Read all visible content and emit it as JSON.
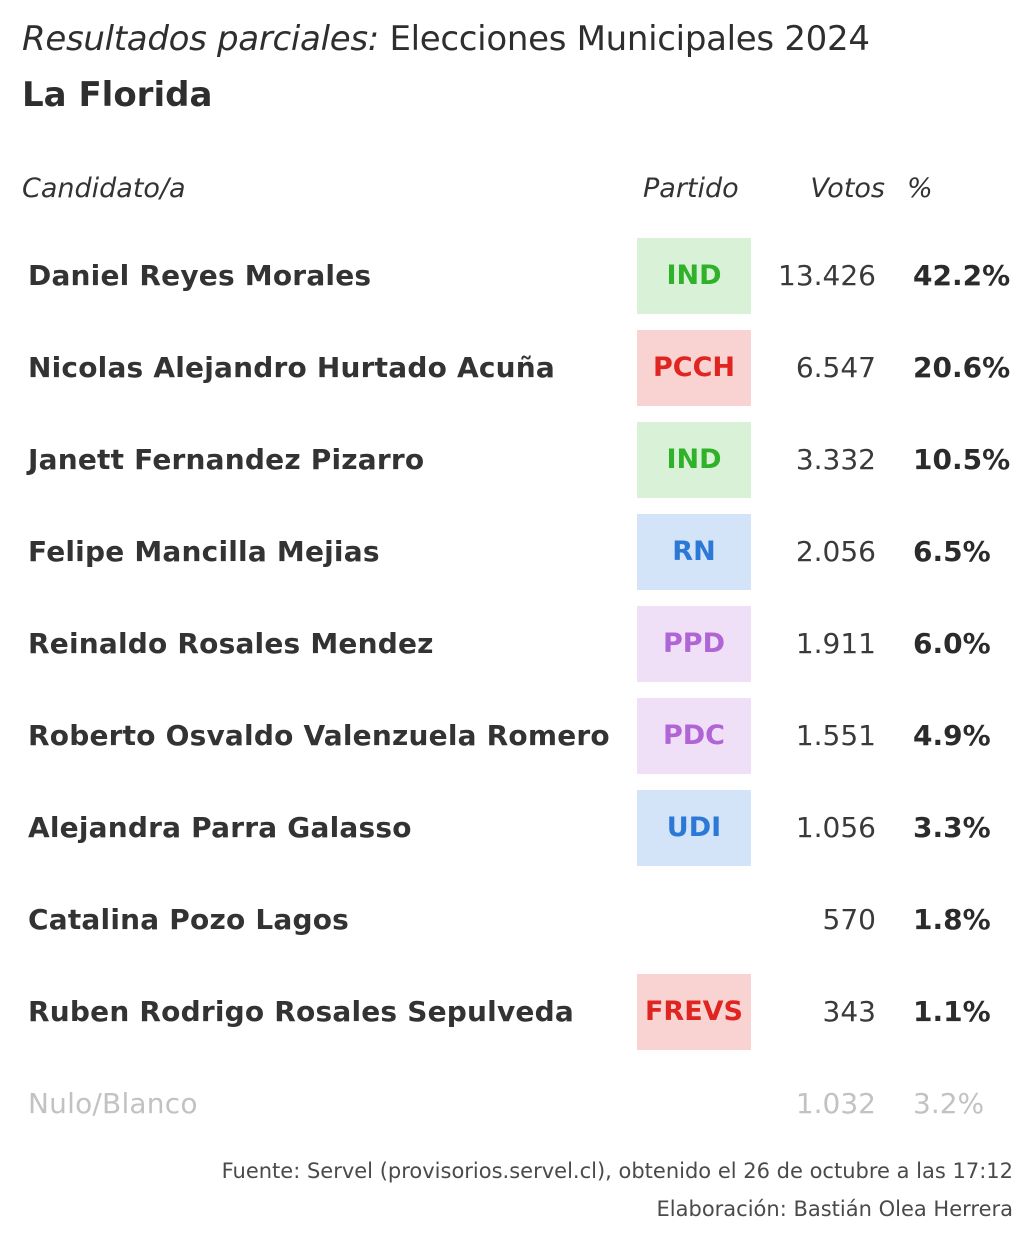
{
  "header": {
    "title_italic": "Resultados parciales:",
    "title_rest": " Elecciones Municipales 2024",
    "subtitle": "La Florida"
  },
  "columns": {
    "candidate": "Candidato/a",
    "party": "Partido",
    "votes": "Votos",
    "pct": "%"
  },
  "colors": {
    "IND": {
      "fg": "#2fb12a",
      "bg": "#d9f1d6"
    },
    "PCCH": {
      "fg": "#e0241f",
      "bg": "#f8d3d2"
    },
    "RN": {
      "fg": "#2b78d6",
      "bg": "#d3e4f8"
    },
    "PPD": {
      "fg": "#b065d6",
      "bg": "#efe0f7"
    },
    "PDC": {
      "fg": "#b065d6",
      "bg": "#efe0f7"
    },
    "UDI": {
      "fg": "#2b78d6",
      "bg": "#d3e4f8"
    },
    "FREVS": {
      "fg": "#e0241f",
      "bg": "#f8d3d2"
    }
  },
  "chart_data": {
    "type": "table",
    "title": "Resultados parciales: Elecciones Municipales 2024",
    "subtitle": "La Florida",
    "columns": [
      "Candidato/a",
      "Partido",
      "Votos",
      "%"
    ],
    "rows": [
      {
        "candidate": "Daniel Reyes Morales",
        "party": "IND",
        "votes": "13.426",
        "pct": "42.2%"
      },
      {
        "candidate": "Nicolas Alejandro Hurtado Acuña",
        "party": "PCCH",
        "votes": "6.547",
        "pct": "20.6%"
      },
      {
        "candidate": "Janett Fernandez Pizarro",
        "party": "IND",
        "votes": "3.332",
        "pct": "10.5%"
      },
      {
        "candidate": "Felipe Mancilla Mejias",
        "party": "RN",
        "votes": "2.056",
        "pct": "6.5%"
      },
      {
        "candidate": "Reinaldo Rosales Mendez",
        "party": "PPD",
        "votes": "1.911",
        "pct": "6.0%"
      },
      {
        "candidate": "Roberto Osvaldo Valenzuela Romero",
        "party": "PDC",
        "votes": "1.551",
        "pct": "4.9%"
      },
      {
        "candidate": "Alejandra Parra Galasso",
        "party": "UDI",
        "votes": "1.056",
        "pct": "3.3%"
      },
      {
        "candidate": "Catalina Pozo Lagos",
        "party": "",
        "votes": "570",
        "pct": "1.8%"
      },
      {
        "candidate": "Ruben Rodrigo Rosales Sepulveda",
        "party": "FREVS",
        "votes": "343",
        "pct": "1.1%"
      },
      {
        "candidate": "Nulo/Blanco",
        "party": "",
        "votes": "1.032",
        "pct": "3.2%",
        "muted": true
      }
    ]
  },
  "footer": {
    "source": "Fuente: Servel (provisorios.servel.cl), obtenido el 26 de octubre a las 17:12",
    "credit": "Elaboración: Bastián Olea Herrera"
  }
}
